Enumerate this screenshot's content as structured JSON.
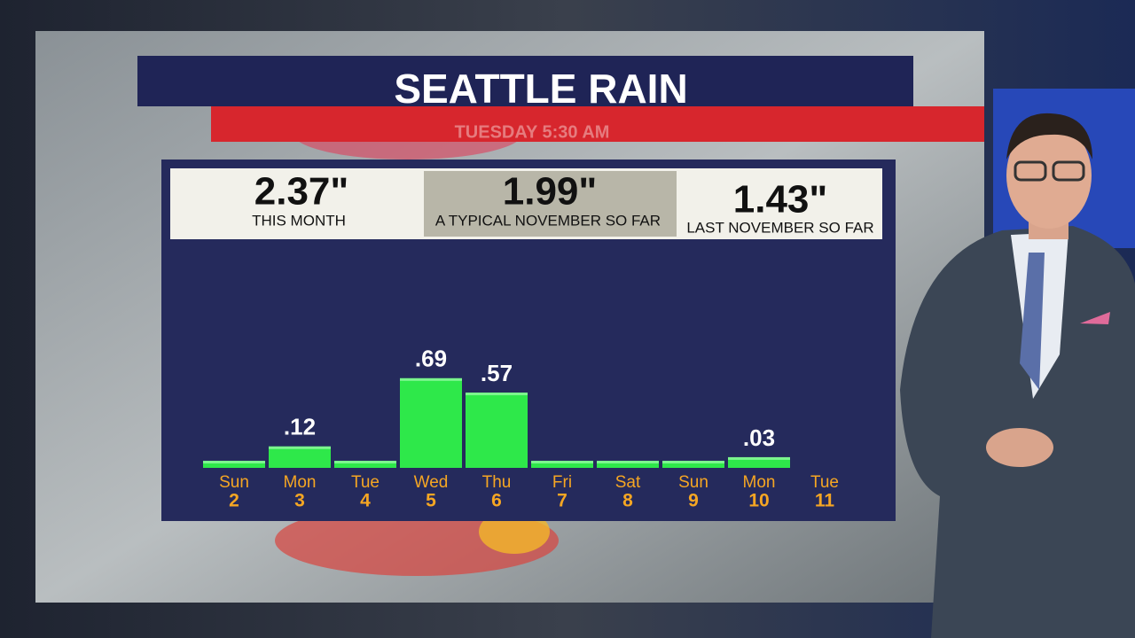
{
  "chart_data": {
    "type": "bar",
    "title": "SEATTLE RAIN",
    "subtitle": "TUESDAY 5:30 AM",
    "stats": [
      {
        "value": "2.37\"",
        "label": "THIS MONTH"
      },
      {
        "value": "1.99\"",
        "label": "A TYPICAL NOVEMBER SO FAR"
      },
      {
        "value": "1.43\"",
        "label": "LAST NOVEMBER SO FAR"
      }
    ],
    "categories": [
      "Sun",
      "Mon",
      "Tue",
      "Wed",
      "Thu",
      "Fri",
      "Sat",
      "Sun",
      "Mon",
      "Tue"
    ],
    "dates": [
      2,
      3,
      4,
      5,
      6,
      7,
      8,
      9,
      10,
      11
    ],
    "values": [
      0,
      0.12,
      0,
      0.69,
      0.57,
      0,
      0,
      0,
      0.03,
      null
    ],
    "value_labels": [
      null,
      ".12",
      null,
      ".69",
      ".57",
      null,
      null,
      null,
      ".03",
      null
    ],
    "color": "#2ee84a"
  }
}
